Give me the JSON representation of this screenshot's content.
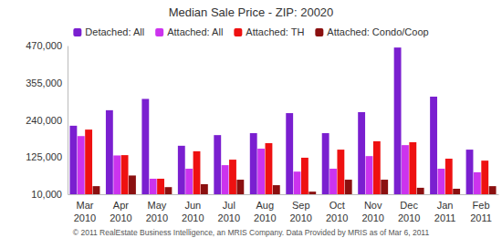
{
  "chart_data": {
    "type": "bar",
    "title": "Median Sale Price - ZIP: 20020",
    "annotations": [
      "© 2011 RealEstate Business Intelligence, an MRIS Company. Data Provided by MRIS as of Mar 6, 2011"
    ],
    "categories": [
      "Mar 2010",
      "Apr 2010",
      "May 2010",
      "Jun 2010",
      "Jul 2010",
      "Aug 2010",
      "Sep 2010",
      "Oct 2010",
      "Nov 2010",
      "Dec 2010",
      "Jan 2011",
      "Feb 2011"
    ],
    "series": [
      {
        "name": "Detached: All",
        "color": "#7a1fd0",
        "values": [
          222000,
          270000,
          305000,
          160000,
          193000,
          199000,
          261000,
          199000,
          264000,
          464000,
          312000,
          148000
        ]
      },
      {
        "name": "Attached: All",
        "color": "#cc33ee",
        "values": [
          190000,
          130000,
          58000,
          89000,
          100000,
          151000,
          80000,
          89000,
          128000,
          162000,
          89000,
          78000
        ]
      },
      {
        "name": "Attached: TH",
        "color": "#ee1111",
        "values": [
          210000,
          131000,
          58000,
          143000,
          117000,
          168000,
          123000,
          148000,
          174000,
          171000,
          120000,
          114000
        ]
      },
      {
        "name": "Attached: Condo/Coop",
        "color": "#8b1010",
        "values": [
          35000,
          68000,
          32000,
          41000,
          55000,
          38000,
          18000,
          55000,
          55000,
          30000,
          27000,
          35000
        ]
      }
    ],
    "ylim": [
      10000,
      470000
    ],
    "yticks": [
      {
        "value": 10000,
        "label": "10,000"
      },
      {
        "value": 125000,
        "label": "125,000"
      },
      {
        "value": 240000,
        "label": "240,000"
      },
      {
        "value": 355000,
        "label": "355,000"
      },
      {
        "value": 470000,
        "label": "470,000"
      }
    ],
    "grid": false,
    "legend": "top"
  }
}
